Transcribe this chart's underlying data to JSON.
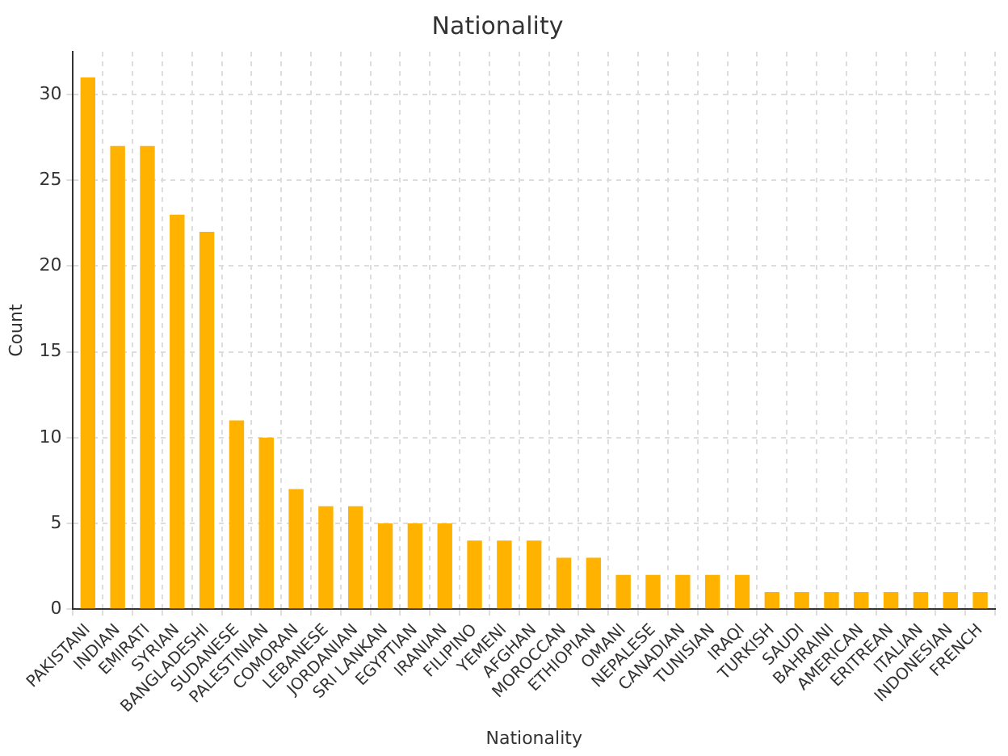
{
  "chart_data": {
    "type": "bar",
    "title": "Nationality",
    "xlabel": "Nationality",
    "ylabel": "Count",
    "categories": [
      "PAKISTANI",
      "INDIAN",
      "EMIRATI",
      "SYRIAN",
      "BANGLADESHI",
      "SUDANESE",
      "PALESTINIAN",
      "COMORAN",
      "LEBANESE",
      "JORDANIAN",
      "SRI LANKAN",
      "EGYPTIAN",
      "IRANIAN",
      "FILIPINO",
      "YEMENI",
      "AFGHAN",
      "MOROCCAN",
      "ETHIOPIAN",
      "OMANI",
      "NEPALESE",
      "CANADIAN",
      "TUNISIAN",
      "IRAQI",
      "TURKISH",
      "SAUDI",
      "BAHRAINI",
      "AMERICAN",
      "ERITREAN",
      "ITALIAN",
      "INDONESIAN",
      "FRENCH"
    ],
    "values": [
      31,
      27,
      27,
      23,
      22,
      11,
      10,
      7,
      6,
      6,
      5,
      5,
      5,
      4,
      4,
      4,
      3,
      3,
      2,
      2,
      2,
      2,
      2,
      1,
      1,
      1,
      1,
      1,
      1,
      1,
      1
    ],
    "color": "#ffb300",
    "ylim": [
      0,
      32.5
    ],
    "yticks": [
      0,
      5,
      10,
      15,
      20,
      25,
      30
    ],
    "grid": true
  }
}
